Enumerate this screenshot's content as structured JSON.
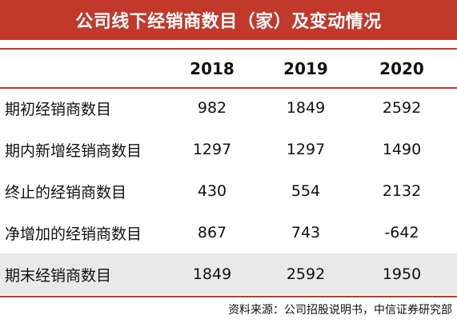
{
  "title": "公司线下经销商数目（家）及变动情况",
  "table": {
    "columns": [
      "2018",
      "2019",
      "2020"
    ],
    "rows": [
      {
        "label": "期初经销商数目",
        "values": [
          "982",
          "1849",
          "2592"
        ]
      },
      {
        "label": "期内新增经销商数目",
        "values": [
          "1297",
          "1297",
          "1490"
        ]
      },
      {
        "label": "终止的经销商数目",
        "values": [
          "430",
          "554",
          "2132"
        ]
      },
      {
        "label": "净增加的经销商数目",
        "values": [
          "867",
          "743",
          "-642"
        ]
      },
      {
        "label": "期末经销商数目",
        "values": [
          "1849",
          "2592",
          "1950"
        ]
      }
    ]
  },
  "source": "资料来源：公司招股说明书，中信证券研究部",
  "colors": {
    "accent": "#c0392b",
    "highlight_row": "#e9e9e9"
  }
}
